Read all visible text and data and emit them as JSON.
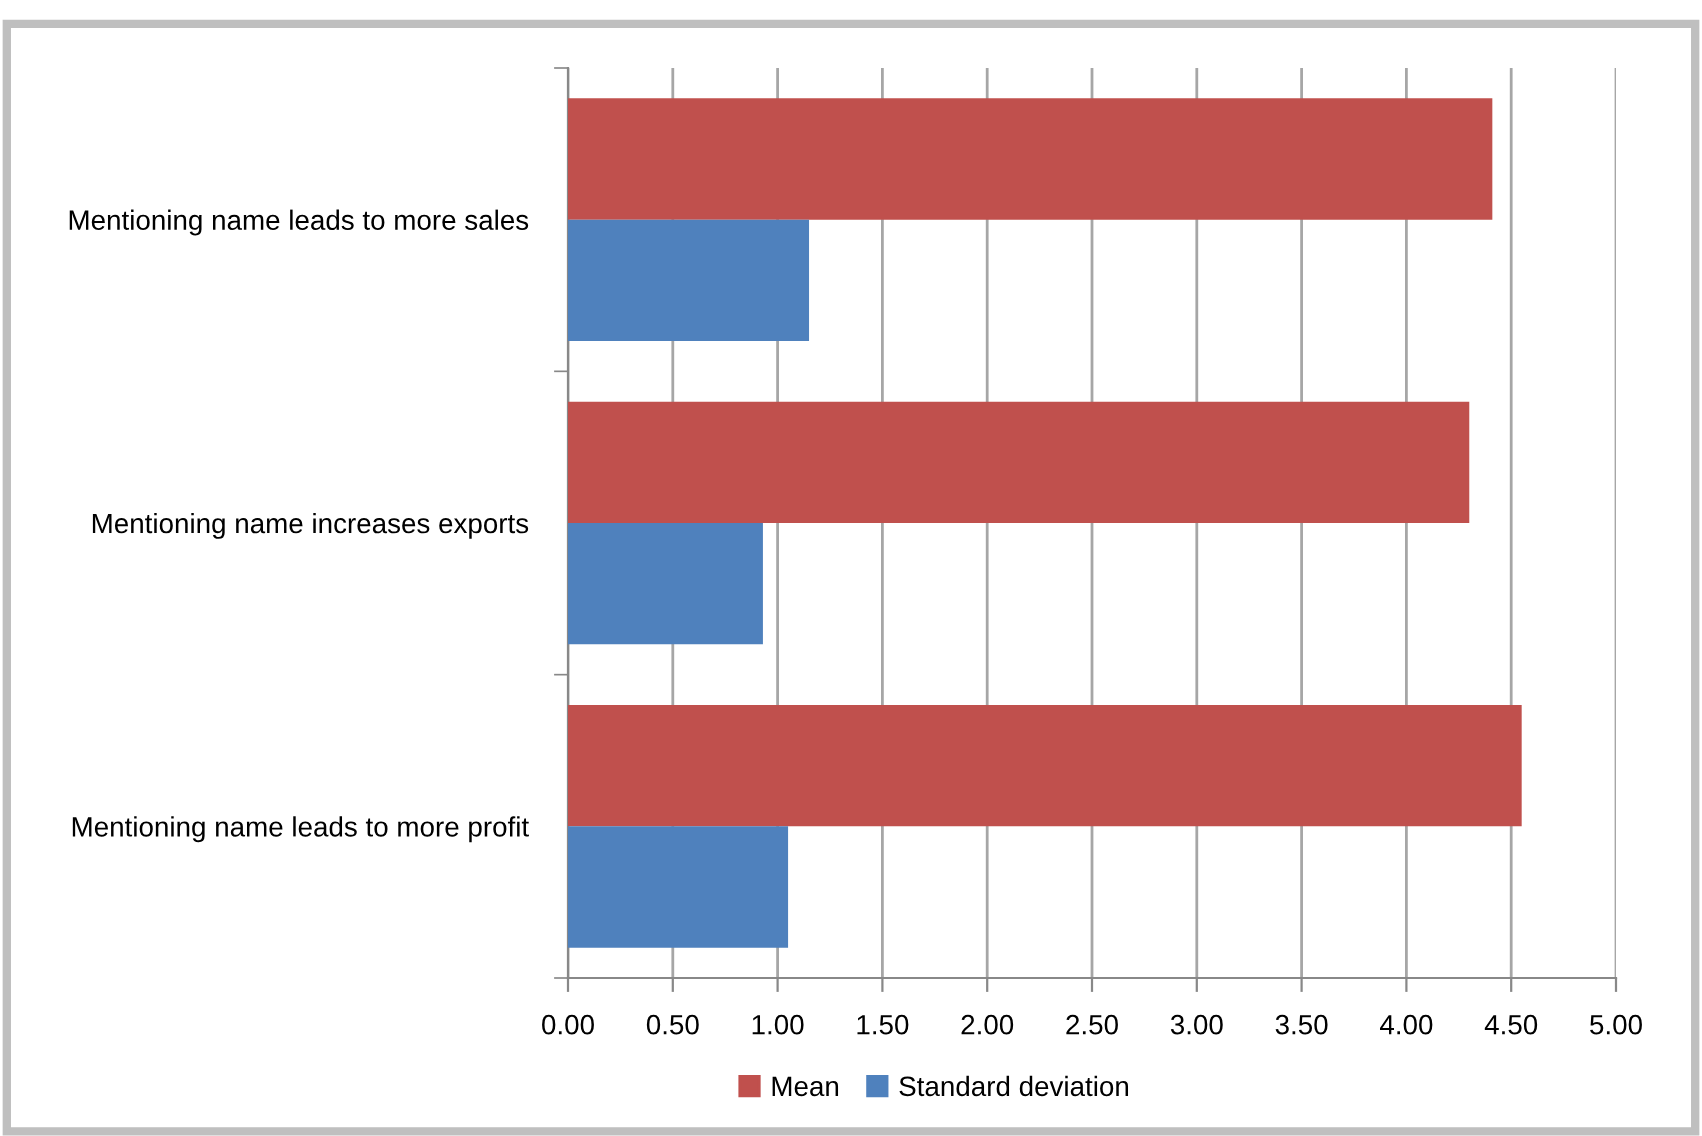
{
  "chart_data": {
    "type": "bar",
    "orientation": "horizontal",
    "categories": [
      "Mentioning name leads to more sales",
      "Mentioning name increases exports",
      "Mentioning name leads to more profit"
    ],
    "series": [
      {
        "name": "Mean",
        "color": "#c0504d",
        "values": [
          4.41,
          4.3,
          4.55
        ]
      },
      {
        "name": "Standard deviation",
        "color": "#4f81bd",
        "values": [
          1.15,
          0.93,
          1.05
        ]
      }
    ],
    "xlim": [
      0,
      5
    ],
    "xticks": [
      {
        "value": 0,
        "label": "0.00"
      },
      {
        "value": 0.5,
        "label": "0.50"
      },
      {
        "value": 1,
        "label": "1.00"
      },
      {
        "value": 1.5,
        "label": "1.50"
      },
      {
        "value": 2,
        "label": "2.00"
      },
      {
        "value": 2.5,
        "label": "2.50"
      },
      {
        "value": 3,
        "label": "3.00"
      },
      {
        "value": 3.5,
        "label": "3.50"
      },
      {
        "value": 4,
        "label": "4.00"
      },
      {
        "value": 4.5,
        "label": "4.50"
      },
      {
        "value": 5,
        "label": "5.00"
      }
    ],
    "grid": "x",
    "legend": "bottom"
  }
}
